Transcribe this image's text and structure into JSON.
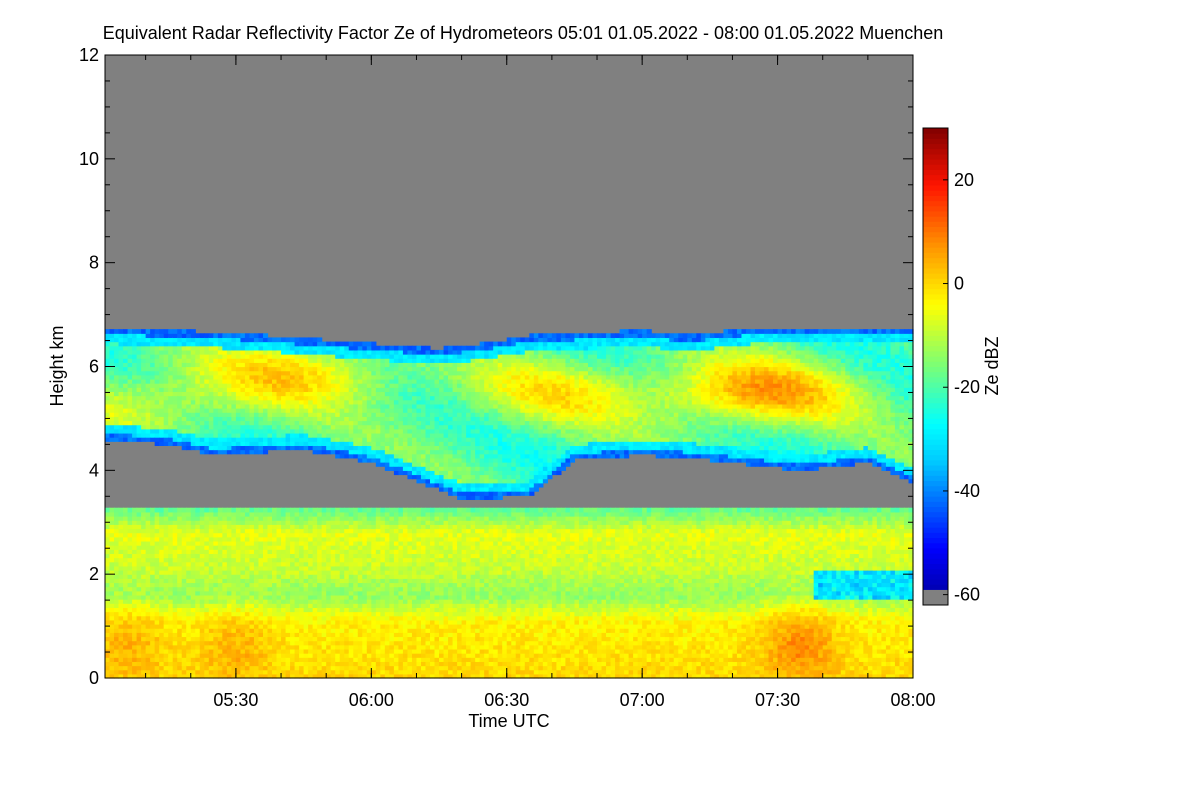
{
  "chart_data": {
    "type": "heatmap",
    "title": "Equivalent Radar Reflectivity Factor Ze of Hydrometeors   05:01 01.05.2022 - 08:00 01.05.2022 Muenchen",
    "xlabel": "Time UTC",
    "ylabel": "Height km",
    "x_range_minutes_utc": [
      301,
      480
    ],
    "x_ticks": [
      {
        "label": "05:30",
        "minute": 330
      },
      {
        "label": "06:00",
        "minute": 360
      },
      {
        "label": "06:30",
        "minute": 390
      },
      {
        "label": "07:00",
        "minute": 420
      },
      {
        "label": "07:30",
        "minute": 450
      },
      {
        "label": "08:00",
        "minute": 480
      }
    ],
    "ylim": [
      0,
      12
    ],
    "y_ticks": [
      0,
      2,
      4,
      6,
      8,
      10,
      12
    ],
    "colorbar": {
      "label": "Ze dBZ",
      "range": [
        -62,
        30
      ],
      "ticks": [
        20,
        0,
        -20,
        -40,
        -60
      ],
      "no_data_color": "#808080"
    },
    "layers": [
      {
        "name": "upper",
        "top_km": [
          [
            301,
            6.75
          ],
          [
            330,
            6.65
          ],
          [
            360,
            6.45
          ],
          [
            375,
            6.35
          ],
          [
            385,
            6.45
          ],
          [
            395,
            6.6
          ],
          [
            420,
            6.7
          ],
          [
            430,
            6.6
          ],
          [
            445,
            6.75
          ],
          [
            480,
            6.75
          ]
        ],
        "base_km": [
          [
            301,
            4.6
          ],
          [
            315,
            4.5
          ],
          [
            325,
            4.3
          ],
          [
            345,
            4.4
          ],
          [
            360,
            4.15
          ],
          [
            370,
            3.8
          ],
          [
            380,
            3.45
          ],
          [
            395,
            3.5
          ],
          [
            405,
            4.2
          ],
          [
            420,
            4.3
          ],
          [
            435,
            4.2
          ],
          [
            455,
            4.0
          ],
          [
            470,
            4.15
          ],
          [
            480,
            3.75
          ]
        ],
        "core": [
          {
            "minute": 345,
            "km": 5.9,
            "dbz": -5
          },
          {
            "minute": 400,
            "km": 5.5,
            "dbz": -8
          },
          {
            "minute": 445,
            "km": 5.5,
            "dbz": 2
          },
          {
            "minute": 312,
            "km": 5.3,
            "dbz": -10
          }
        ]
      },
      {
        "name": "lower",
        "top_km": 3.25,
        "base_km": 0,
        "dbz_by_height": [
          [
            0,
            0
          ],
          [
            1.1,
            -3
          ],
          [
            1.6,
            -14
          ],
          [
            2.1,
            -9
          ],
          [
            2.8,
            -6
          ],
          [
            3.25,
            -18
          ]
        ],
        "core": [
          {
            "minute": 455,
            "km": 0.6,
            "dbz": 8
          },
          {
            "minute": 330,
            "km": 0.5,
            "dbz": 4
          },
          {
            "minute": 306,
            "km": 0.6,
            "dbz": 4
          }
        ]
      }
    ]
  }
}
